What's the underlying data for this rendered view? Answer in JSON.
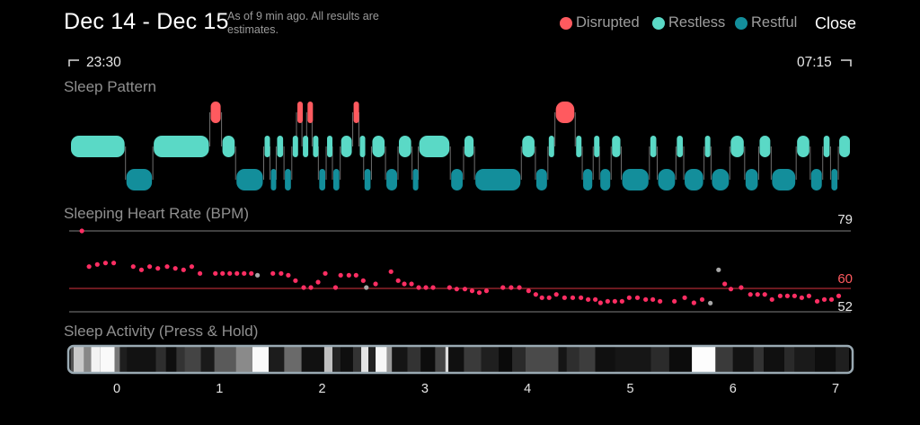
{
  "header": {
    "title": "Dec 14 - Dec 15",
    "subtitle": "As of 9 min ago. All results are estimates.",
    "legend": [
      {
        "label": "Disrupted",
        "color": "#ff5a5f"
      },
      {
        "label": "Restless",
        "color": "#5ad9c6"
      },
      {
        "label": "Restful",
        "color": "#138e9b"
      }
    ],
    "close_label": "Close"
  },
  "timeline": {
    "start": "23:30",
    "end": "07:15"
  },
  "sleep_pattern": {
    "title": "Sleep Pattern",
    "segments": [
      {
        "s": "restless",
        "a": 0.0,
        "b": 0.71
      },
      {
        "s": "restful",
        "a": 0.71,
        "b": 1.06
      },
      {
        "s": "restless",
        "a": 1.06,
        "b": 1.79
      },
      {
        "s": "disrupted",
        "a": 1.79,
        "b": 1.94
      },
      {
        "s": "restless",
        "a": 1.94,
        "b": 2.12
      },
      {
        "s": "restful",
        "a": 2.12,
        "b": 2.48
      },
      {
        "s": "restless",
        "a": 2.48,
        "b": 2.56
      },
      {
        "s": "restful",
        "a": 2.56,
        "b": 2.64
      },
      {
        "s": "restless",
        "a": 2.64,
        "b": 2.74
      },
      {
        "s": "restful",
        "a": 2.74,
        "b": 2.84
      },
      {
        "s": "restless",
        "a": 2.84,
        "b": 2.9
      },
      {
        "s": "disrupted",
        "a": 2.9,
        "b": 2.97
      },
      {
        "s": "restless",
        "a": 2.97,
        "b": 3.03
      },
      {
        "s": "disrupted",
        "a": 3.03,
        "b": 3.1
      },
      {
        "s": "restless",
        "a": 3.1,
        "b": 3.18
      },
      {
        "s": "restful",
        "a": 3.18,
        "b": 3.28
      },
      {
        "s": "restless",
        "a": 3.28,
        "b": 3.36
      },
      {
        "s": "restful",
        "a": 3.36,
        "b": 3.46
      },
      {
        "s": "restless",
        "a": 3.46,
        "b": 3.62
      },
      {
        "s": "disrupted",
        "a": 3.62,
        "b": 3.7
      },
      {
        "s": "restless",
        "a": 3.7,
        "b": 3.76
      },
      {
        "s": "restful",
        "a": 3.76,
        "b": 3.86
      },
      {
        "s": "restless",
        "a": 3.86,
        "b": 4.04
      },
      {
        "s": "restful",
        "a": 4.04,
        "b": 4.2
      },
      {
        "s": "restless",
        "a": 4.2,
        "b": 4.38
      },
      {
        "s": "restful",
        "a": 4.38,
        "b": 4.46
      },
      {
        "s": "restless",
        "a": 4.46,
        "b": 4.87
      },
      {
        "s": "restful",
        "a": 4.87,
        "b": 5.04
      },
      {
        "s": "restless",
        "a": 5.04,
        "b": 5.18
      },
      {
        "s": "restful",
        "a": 5.18,
        "b": 5.78
      },
      {
        "s": "restless",
        "a": 5.78,
        "b": 5.96
      },
      {
        "s": "restful",
        "a": 5.96,
        "b": 6.12
      },
      {
        "s": "restless",
        "a": 6.12,
        "b": 6.21
      },
      {
        "s": "disrupted",
        "a": 6.21,
        "b": 6.47
      },
      {
        "s": "restless",
        "a": 6.47,
        "b": 6.56
      },
      {
        "s": "restful",
        "a": 6.56,
        "b": 6.7
      },
      {
        "s": "restless",
        "a": 6.7,
        "b": 6.78
      },
      {
        "s": "restful",
        "a": 6.78,
        "b": 6.93
      },
      {
        "s": "restless",
        "a": 6.93,
        "b": 7.06
      },
      {
        "s": "restful",
        "a": 7.06,
        "b": 7.42
      },
      {
        "s": "restless",
        "a": 7.42,
        "b": 7.52
      },
      {
        "s": "restful",
        "a": 7.52,
        "b": 7.76
      },
      {
        "s": "restless",
        "a": 7.76,
        "b": 7.86
      },
      {
        "s": "restful",
        "a": 7.86,
        "b": 8.12
      },
      {
        "s": "restless",
        "a": 8.12,
        "b": 8.21
      },
      {
        "s": "restful",
        "a": 8.21,
        "b": 8.45
      },
      {
        "s": "restless",
        "a": 8.45,
        "b": 8.64
      },
      {
        "s": "restful",
        "a": 8.64,
        "b": 8.82
      },
      {
        "s": "restless",
        "a": 8.82,
        "b": 8.98
      },
      {
        "s": "restful",
        "a": 8.98,
        "b": 9.3
      },
      {
        "s": "restless",
        "a": 9.3,
        "b": 9.48
      },
      {
        "s": "restful",
        "a": 9.48,
        "b": 9.64
      },
      {
        "s": "restless",
        "a": 9.64,
        "b": 9.74
      },
      {
        "s": "restful",
        "a": 9.74,
        "b": 9.84
      },
      {
        "s": "restless",
        "a": 9.84,
        "b": 10.0
      }
    ]
  },
  "heart_rate": {
    "title": "Sleeping Heart Rate (BPM)",
    "max_label": "79",
    "avg_label": "60",
    "min_label": "52",
    "max": 79,
    "avg": 60,
    "min": 52,
    "points": [
      [
        -0.34,
        79,
        "red"
      ],
      [
        -0.27,
        67.1,
        "red"
      ],
      [
        -0.19,
        67.8,
        "red"
      ],
      [
        -0.11,
        68.3,
        "red"
      ],
      [
        -0.03,
        68.3,
        "red"
      ],
      [
        0.16,
        67.1,
        "red"
      ],
      [
        0.24,
        66.0,
        "red"
      ],
      [
        0.32,
        67.1,
        "red"
      ],
      [
        0.4,
        66.5,
        "red"
      ],
      [
        0.49,
        67.1,
        "red"
      ],
      [
        0.57,
        66.5,
        "red"
      ],
      [
        0.65,
        66.0,
        "red"
      ],
      [
        0.73,
        67.1,
        "red"
      ],
      [
        0.81,
        64.8,
        "red"
      ],
      [
        0.96,
        64.8,
        "red"
      ],
      [
        1.03,
        64.8,
        "red"
      ],
      [
        1.1,
        64.8,
        "red"
      ],
      [
        1.17,
        64.8,
        "red"
      ],
      [
        1.24,
        64.8,
        "red"
      ],
      [
        1.31,
        64.8,
        "red"
      ],
      [
        1.37,
        64.2,
        "gray"
      ],
      [
        1.52,
        64.8,
        "red"
      ],
      [
        1.6,
        64.8,
        "red"
      ],
      [
        1.67,
        64.2,
        "red"
      ],
      [
        1.74,
        62.4,
        "red"
      ],
      [
        1.82,
        60.1,
        "red"
      ],
      [
        1.89,
        60.1,
        "red"
      ],
      [
        1.96,
        61.9,
        "red"
      ],
      [
        2.03,
        64.8,
        "red"
      ],
      [
        2.13,
        60.1,
        "red"
      ],
      [
        2.18,
        64.2,
        "red"
      ],
      [
        2.26,
        64.2,
        "red"
      ],
      [
        2.33,
        64.2,
        "red"
      ],
      [
        2.4,
        62.4,
        "red"
      ],
      [
        2.43,
        60.1,
        "gray"
      ],
      [
        2.52,
        61.3,
        "red"
      ],
      [
        2.67,
        65.4,
        "red"
      ],
      [
        2.74,
        62.4,
        "red"
      ],
      [
        2.8,
        61.3,
        "red"
      ],
      [
        2.87,
        61.3,
        "red"
      ],
      [
        2.94,
        60.1,
        "red"
      ],
      [
        3.01,
        60.1,
        "red"
      ],
      [
        3.08,
        60.1,
        "red"
      ],
      [
        3.24,
        60.1,
        "red"
      ],
      [
        3.31,
        59.6,
        "red"
      ],
      [
        3.39,
        59.6,
        "red"
      ],
      [
        3.46,
        59.0,
        "red"
      ],
      [
        3.53,
        58.4,
        "red"
      ],
      [
        3.6,
        59.0,
        "red"
      ],
      [
        3.76,
        60.1,
        "red"
      ],
      [
        3.84,
        60.1,
        "red"
      ],
      [
        3.92,
        60.1,
        "red"
      ],
      [
        4.01,
        59.0,
        "red"
      ],
      [
        4.08,
        57.8,
        "red"
      ],
      [
        4.14,
        56.7,
        "red"
      ],
      [
        4.21,
        56.7,
        "red"
      ],
      [
        4.28,
        57.8,
        "red"
      ],
      [
        4.36,
        56.7,
        "red"
      ],
      [
        4.44,
        56.7,
        "red"
      ],
      [
        4.52,
        56.7,
        "red"
      ],
      [
        4.59,
        56.1,
        "red"
      ],
      [
        4.66,
        56.1,
        "red"
      ],
      [
        4.71,
        55.0,
        "red"
      ],
      [
        4.78,
        55.5,
        "red"
      ],
      [
        4.85,
        55.5,
        "red"
      ],
      [
        4.92,
        55.5,
        "red"
      ],
      [
        4.99,
        56.7,
        "red"
      ],
      [
        5.07,
        56.7,
        "red"
      ],
      [
        5.15,
        56.1,
        "red"
      ],
      [
        5.22,
        56.1,
        "red"
      ],
      [
        5.29,
        55.5,
        "red"
      ],
      [
        5.43,
        55.5,
        "red"
      ],
      [
        5.53,
        56.7,
        "red"
      ],
      [
        5.62,
        55.0,
        "red"
      ],
      [
        5.7,
        56.1,
        "red"
      ],
      [
        5.78,
        54.9,
        "gray"
      ],
      [
        5.86,
        66.0,
        "gray"
      ],
      [
        5.92,
        61.3,
        "red"
      ],
      [
        5.98,
        59.6,
        "red"
      ],
      [
        6.08,
        60.1,
        "red"
      ],
      [
        6.17,
        57.8,
        "red"
      ],
      [
        6.24,
        57.8,
        "red"
      ],
      [
        6.31,
        57.8,
        "red"
      ],
      [
        6.38,
        56.1,
        "red"
      ],
      [
        6.46,
        57.3,
        "red"
      ],
      [
        6.53,
        57.3,
        "red"
      ],
      [
        6.6,
        57.3,
        "red"
      ],
      [
        6.67,
        56.7,
        "red"
      ],
      [
        6.74,
        57.3,
        "red"
      ],
      [
        6.82,
        55.5,
        "red"
      ],
      [
        6.89,
        56.1,
        "red"
      ],
      [
        6.96,
        56.1,
        "red"
      ],
      [
        7.03,
        57.3,
        "red"
      ]
    ]
  },
  "activity": {
    "title": "Sleep Activity (Press & Hold)",
    "ticks": [
      "0",
      "1",
      "2",
      "3",
      "4",
      "5",
      "6",
      "7"
    ],
    "bars": [
      [
        -0.45,
        -0.42,
        "#555"
      ],
      [
        -0.42,
        -0.32,
        "#c9c9c9"
      ],
      [
        -0.32,
        -0.25,
        "#888"
      ],
      [
        -0.25,
        -0.16,
        "#f3f3f3"
      ],
      [
        -0.16,
        -0.02,
        "#fafafa"
      ],
      [
        -0.02,
        0.03,
        "#777"
      ],
      [
        0.03,
        0.1,
        "#1e1e1e"
      ],
      [
        0.1,
        0.38,
        "#121212"
      ],
      [
        0.38,
        0.48,
        "#2e2e2e"
      ],
      [
        0.48,
        0.58,
        "#0e0e0e"
      ],
      [
        0.58,
        0.66,
        "#333"
      ],
      [
        0.66,
        0.82,
        "#444"
      ],
      [
        0.82,
        0.95,
        "#1a1a1a"
      ],
      [
        0.95,
        1.16,
        "#5a5a5a"
      ],
      [
        1.16,
        1.32,
        "#8a8a8a"
      ],
      [
        1.32,
        1.48,
        "#fafafa"
      ],
      [
        1.48,
        1.63,
        "#1c1c1c"
      ],
      [
        1.63,
        1.8,
        "#6a6a6a"
      ],
      [
        1.8,
        2.02,
        "#111"
      ],
      [
        2.02,
        2.1,
        "#c0c0c0"
      ],
      [
        2.1,
        2.18,
        "#222"
      ],
      [
        2.18,
        2.3,
        "#0f0f0f"
      ],
      [
        2.3,
        2.38,
        "#333"
      ],
      [
        2.38,
        2.45,
        "#e5e5e5"
      ],
      [
        2.45,
        2.52,
        "#222"
      ],
      [
        2.52,
        2.63,
        "#f7f7f7"
      ],
      [
        2.63,
        2.68,
        "#999"
      ],
      [
        2.68,
        2.83,
        "#151515"
      ],
      [
        2.83,
        2.96,
        "#333"
      ],
      [
        2.96,
        3.1,
        "#0d0d0d"
      ],
      [
        3.1,
        3.2,
        "#444"
      ],
      [
        3.2,
        3.23,
        "#ddd"
      ],
      [
        3.23,
        3.38,
        "#101010"
      ],
      [
        3.38,
        3.55,
        "#3a3a3a"
      ],
      [
        3.55,
        3.72,
        "#1f1f1f"
      ],
      [
        3.72,
        3.85,
        "#0a0a0a"
      ],
      [
        3.85,
        3.98,
        "#2a2a2a"
      ],
      [
        3.98,
        4.3,
        "#4a4a4a"
      ],
      [
        4.3,
        4.38,
        "#151515"
      ],
      [
        4.38,
        4.5,
        "#2e2e2e"
      ],
      [
        4.5,
        4.66,
        "#3d3d3d"
      ],
      [
        4.66,
        4.85,
        "#101010"
      ],
      [
        4.85,
        5.2,
        "#161616"
      ],
      [
        5.2,
        5.38,
        "#2b2b2b"
      ],
      [
        5.38,
        5.6,
        "#0c0c0c"
      ],
      [
        5.6,
        5.83,
        "#fdfdfd"
      ],
      [
        5.83,
        6.0,
        "#3a3a3a"
      ],
      [
        6.0,
        6.2,
        "#121212"
      ],
      [
        6.2,
        6.3,
        "#333"
      ],
      [
        6.3,
        6.5,
        "#101010"
      ],
      [
        6.5,
        6.6,
        "#2a2a2a"
      ],
      [
        6.6,
        6.8,
        "#1a1a1a"
      ],
      [
        6.8,
        7.0,
        "#0d0d0d"
      ],
      [
        7.0,
        7.13,
        "#1f1f1f"
      ]
    ]
  },
  "colors": {
    "disrupted": "#ff5a5f",
    "restless": "#5ad9c6",
    "restful": "#138e9b",
    "heart_dot": "#ff2e63",
    "gray_dot": "#a8a8a8",
    "avg_line": "#d8343f"
  }
}
